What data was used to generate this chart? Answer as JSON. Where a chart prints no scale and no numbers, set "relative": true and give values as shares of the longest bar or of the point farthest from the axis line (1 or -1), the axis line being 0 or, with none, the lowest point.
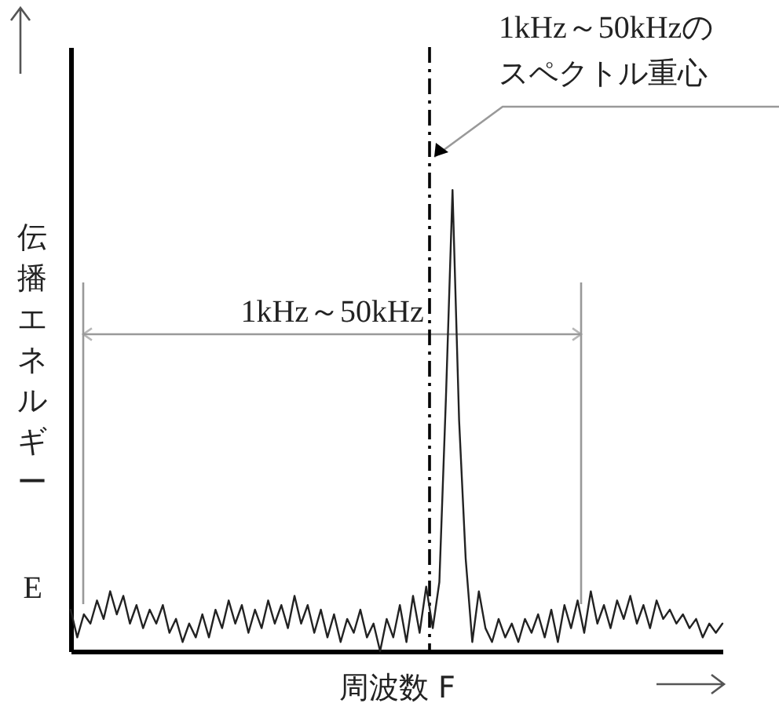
{
  "chart_data": {
    "type": "line",
    "relative": true,
    "xlabel": "周波数 F",
    "ylabel": "伝播エネルギー",
    "tick_labels": false,
    "categories": [
      null,
      null,
      null,
      null,
      null,
      null,
      null,
      null,
      null,
      null,
      null,
      null,
      null,
      null,
      null,
      null,
      null,
      null,
      null,
      null,
      null,
      null,
      null,
      null,
      null,
      null,
      null,
      null,
      null,
      null,
      null,
      null,
      null,
      null,
      null,
      null,
      null,
      null,
      null,
      null,
      null,
      null,
      null,
      null,
      null,
      null,
      null,
      null,
      null,
      null,
      null,
      null,
      null,
      null,
      null,
      null,
      null,
      null,
      null,
      null,
      null,
      null,
      null,
      null,
      null,
      null,
      null,
      null,
      null,
      null,
      null,
      null,
      null,
      null,
      null,
      null,
      null,
      null,
      null,
      null,
      null,
      null,
      null,
      null,
      null,
      null,
      null,
      null,
      null,
      null,
      null,
      null,
      null,
      null,
      null,
      null,
      null,
      null,
      null,
      null
    ],
    "series": [
      {
        "color": "#222222",
        "values": [
          0.09,
          0.03,
          0.08,
          0.06,
          0.11,
          0.07,
          0.13,
          0.08,
          0.12,
          0.06,
          0.1,
          0.05,
          0.09,
          0.06,
          0.1,
          0.04,
          0.07,
          0.02,
          0.06,
          0.03,
          0.08,
          0.03,
          0.09,
          0.05,
          0.11,
          0.06,
          0.1,
          0.04,
          0.09,
          0.05,
          0.11,
          0.06,
          0.1,
          0.05,
          0.12,
          0.06,
          0.1,
          0.04,
          0.09,
          0.03,
          0.08,
          0.02,
          0.07,
          0.04,
          0.09,
          0.03,
          0.06,
          0.0,
          0.07,
          0.03,
          0.1,
          0.02,
          0.12,
          0.04,
          0.14,
          0.05,
          0.15,
          0.55,
          1,
          0.5,
          0.2,
          0.02,
          0.13,
          0.05,
          0.02,
          0.07,
          0.03,
          0.06,
          0.02,
          0.07,
          0.04,
          0.08,
          0.03,
          0.09,
          0.02,
          0.1,
          0.05,
          0.11,
          0.04,
          0.13,
          0.06,
          0.1,
          0.05,
          0.11,
          0.07,
          0.12,
          0.06,
          0.1,
          0.05,
          0.11,
          0.07,
          0.09,
          0.06,
          0.08,
          0.05,
          0.07,
          0.03,
          0.06,
          0.04,
          0.06
        ]
      }
    ],
    "annotations": [
      "1kHz～50kHzの",
      "スペクトル重心",
      "1kHz～50kHz",
      "E"
    ]
  }
}
